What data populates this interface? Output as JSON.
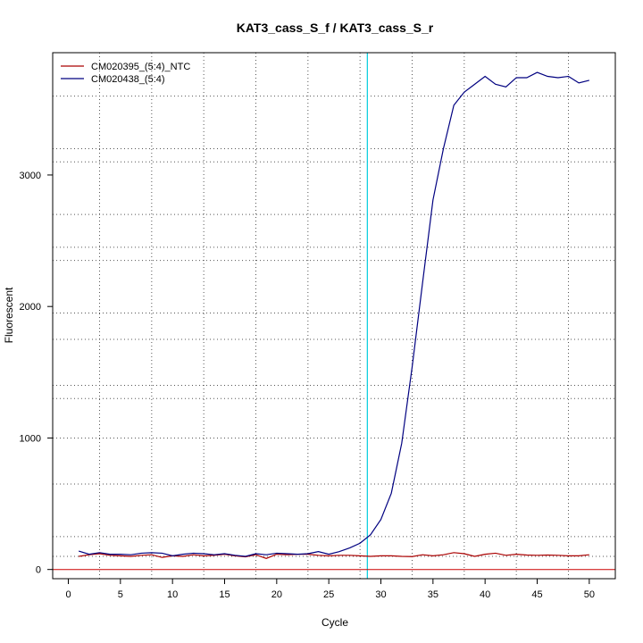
{
  "chart_data": {
    "type": "line",
    "title": "KAT3_cass_S_f / KAT3_cass_S_r",
    "xlabel": "Cycle",
    "ylabel": "Fluorescent",
    "xlim": [
      -1.5,
      52.5
    ],
    "ylim": [
      -70,
      3930
    ],
    "x_ticks": [
      0,
      5,
      10,
      15,
      20,
      25,
      30,
      35,
      40,
      45,
      50
    ],
    "y_ticks": [
      0,
      1000,
      2000,
      3000
    ],
    "x_gridlines": [
      3,
      8,
      13,
      18,
      23,
      28,
      33,
      38,
      43,
      48
    ],
    "y_gridlines": [
      100,
      250,
      650,
      1000,
      1300,
      1400,
      1750,
      1950,
      2350,
      2450,
      2700,
      3100,
      3200,
      3600
    ],
    "grid": true,
    "legend_position": "top-left",
    "threshold_cycle": 28.7,
    "threshold_color": "#00ccdd",
    "baseline_value": 0,
    "baseline_color": "#cc0000",
    "series": [
      {
        "name": "CM020395_(5:4)_NTC",
        "color": "#aa0000",
        "x": [
          1,
          2,
          3,
          4,
          5,
          6,
          7,
          8,
          9,
          10,
          11,
          12,
          13,
          14,
          15,
          16,
          17,
          18,
          19,
          20,
          21,
          22,
          23,
          24,
          25,
          26,
          27,
          28,
          29,
          30,
          31,
          32,
          33,
          34,
          35,
          36,
          37,
          38,
          39,
          40,
          41,
          42,
          43,
          44,
          45,
          46,
          47,
          48,
          49,
          50
        ],
        "values": [
          100,
          112,
          120,
          108,
          104,
          100,
          108,
          112,
          92,
          104,
          100,
          112,
          104,
          108,
          116,
          104,
          96,
          112,
          84,
          116,
          112,
          116,
          116,
          108,
          104,
          108,
          108,
          104,
          100,
          104,
          104,
          100,
          98,
          112,
          104,
          112,
          128,
          120,
          100,
          116,
          124,
          108,
          116,
          110,
          108,
          110,
          108,
          104,
          104,
          112
        ]
      },
      {
        "name": "CM020438_(5:4)",
        "color": "#000080",
        "x": [
          1,
          2,
          3,
          4,
          5,
          6,
          7,
          8,
          9,
          10,
          11,
          12,
          13,
          14,
          15,
          16,
          17,
          18,
          19,
          20,
          21,
          22,
          23,
          24,
          25,
          26,
          27,
          28,
          29,
          30,
          31,
          32,
          33,
          34,
          35,
          36,
          37,
          38,
          39,
          40,
          41,
          42,
          43,
          44,
          45,
          46,
          47,
          48,
          49,
          50
        ],
        "values": [
          140,
          116,
          128,
          116,
          116,
          112,
          124,
          128,
          124,
          104,
          116,
          124,
          120,
          112,
          120,
          108,
          100,
          120,
          112,
          124,
          120,
          116,
          120,
          136,
          116,
          136,
          164,
          200,
          264,
          380,
          580,
          960,
          1540,
          2180,
          2810,
          3200,
          3530,
          3630,
          3690,
          3750,
          3690,
          3670,
          3740,
          3740,
          3780,
          3750,
          3740,
          3750,
          3700,
          3720
        ]
      }
    ]
  }
}
